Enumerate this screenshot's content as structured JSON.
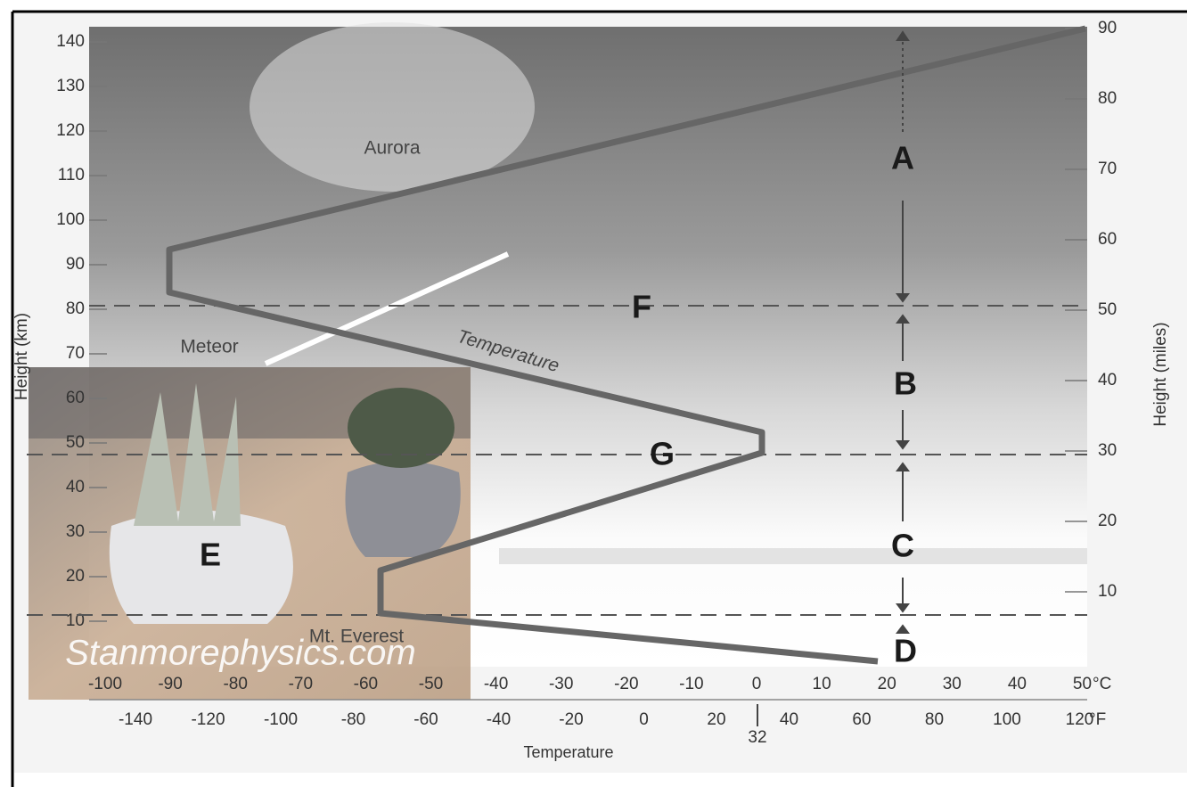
{
  "header": {
    "left_axis_title": "Height (km)",
    "right_axis_title": "Height (miles)",
    "bottom_axis_title": "Temperature",
    "celsius_unit": "°C",
    "fahrenheit_unit": "°F"
  },
  "axes": {
    "km_ticks": [
      140,
      130,
      120,
      110,
      100,
      90,
      80,
      70,
      60,
      50,
      40,
      30,
      20,
      10
    ],
    "mile_ticks": [
      90,
      80,
      70,
      60,
      50,
      40,
      30,
      20,
      10
    ],
    "celsius_ticks": [
      -100,
      -90,
      -80,
      -70,
      -60,
      -50,
      -40,
      -30,
      -20,
      -10,
      0,
      10,
      20,
      30,
      40,
      50
    ],
    "fahrenheit_ticks": [
      -140,
      -120,
      -100,
      -80,
      -60,
      -40,
      -20,
      0,
      20,
      40,
      60,
      80,
      100,
      120
    ],
    "freezing_label": "32"
  },
  "labels": {
    "aurora": "Aurora",
    "meteor": "Meteor",
    "temperature_curve": "Temperature",
    "mt_everest": "Mt. Everest",
    "watermark": "Stanmorephysics.com",
    "a": "A",
    "b": "B",
    "c": "C",
    "d": "D",
    "e": "E",
    "f": "F",
    "g": "G"
  }
}
